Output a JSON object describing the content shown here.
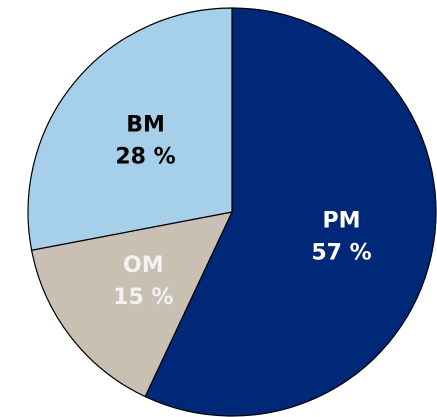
{
  "chart_data": {
    "type": "pie",
    "categories": [
      "PM",
      "OM",
      "BM"
    ],
    "values": [
      57,
      15,
      28
    ],
    "value_labels": [
      "57 %",
      "15 %",
      "28 %"
    ],
    "colors": [
      "#002878",
      "#c9bfb3",
      "#a6cfea"
    ],
    "label_colors": [
      "#ffffff",
      "#f2f2f2",
      "#000000"
    ],
    "start_angle": 0,
    "direction": "clockwise"
  }
}
